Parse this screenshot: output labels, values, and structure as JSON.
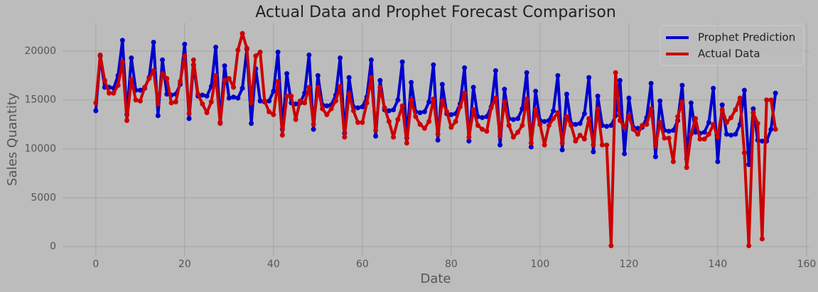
{
  "chart_data": {
    "type": "line",
    "title": "Actual Data and Prophet Forecast Comparison",
    "x_label": "Date",
    "y_label": "Sales Quantity",
    "x": [
      0,
      1,
      2,
      3,
      4,
      5,
      6,
      7,
      8,
      9,
      10,
      11,
      12,
      13,
      14,
      15,
      16,
      17,
      18,
      19,
      20,
      21,
      22,
      23,
      24,
      25,
      26,
      27,
      28,
      29,
      30,
      31,
      32,
      33,
      34,
      35,
      36,
      37,
      38,
      39,
      40,
      41,
      42,
      43,
      44,
      45,
      46,
      47,
      48,
      49,
      50,
      51,
      52,
      53,
      54,
      55,
      56,
      57,
      58,
      59,
      60,
      61,
      62,
      63,
      64,
      65,
      66,
      67,
      68,
      69,
      70,
      71,
      72,
      73,
      74,
      75,
      76,
      77,
      78,
      79,
      80,
      81,
      82,
      83,
      84,
      85,
      86,
      87,
      88,
      89,
      90,
      91,
      92,
      93,
      94,
      95,
      96,
      97,
      98,
      99,
      100,
      101,
      102,
      103,
      104,
      105,
      106,
      107,
      108,
      109,
      110,
      111,
      112,
      113,
      114,
      115,
      116,
      117,
      118,
      119,
      120,
      121,
      122,
      123,
      124,
      125,
      126,
      127,
      128,
      129,
      130,
      131,
      132,
      133,
      134,
      135,
      136,
      137,
      138,
      139,
      140,
      141,
      142,
      143,
      144,
      145,
      146,
      147,
      148,
      149,
      150,
      151,
      152,
      153
    ],
    "series": [
      {
        "name": "Prophet Prediction",
        "color": "#0000cc",
        "values": [
          13900,
          19500,
          16300,
          16300,
          16200,
          17500,
          21100,
          13500,
          19300,
          16000,
          16000,
          16200,
          17300,
          20900,
          13400,
          19100,
          15600,
          15500,
          15600,
          16600,
          20700,
          13100,
          18600,
          15400,
          15500,
          15400,
          16400,
          20400,
          12700,
          18500,
          15200,
          15300,
          15200,
          16200,
          20200,
          12600,
          18200,
          14900,
          14800,
          14900,
          15900,
          19900,
          12000,
          17700,
          14700,
          14600,
          14700,
          15700,
          19600,
          12000,
          17500,
          14500,
          14400,
          14500,
          15500,
          19300,
          11600,
          17300,
          14300,
          14200,
          14300,
          15300,
          19100,
          11300,
          17000,
          14000,
          13900,
          14000,
          15000,
          18900,
          11100,
          16800,
          13800,
          13700,
          13800,
          14800,
          18600,
          10900,
          16600,
          13600,
          13500,
          13600,
          14600,
          18300,
          10800,
          16300,
          13300,
          13200,
          13300,
          14300,
          18000,
          10400,
          16100,
          13100,
          13000,
          13100,
          14100,
          17800,
          10200,
          15900,
          12900,
          12800,
          12900,
          13900,
          17500,
          9900,
          15600,
          12600,
          12500,
          12600,
          13600,
          17300,
          9700,
          15400,
          12400,
          12300,
          12400,
          13400,
          17000,
          9500,
          15200,
          12200,
          12100,
          12200,
          13200,
          16700,
          9200,
          14900,
          11900,
          11800,
          11900,
          12900,
          16500,
          9000,
          14700,
          11700,
          11600,
          11700,
          12700,
          16200,
          8700,
          14500,
          11500,
          11400,
          11500,
          12500,
          16000,
          8400,
          14100,
          10900,
          10800,
          10800,
          12000,
          15700
        ]
      },
      {
        "name": "Actual Data",
        "color": "#cc0000",
        "values": [
          14700,
          19600,
          17000,
          15700,
          15700,
          16500,
          18900,
          12900,
          17100,
          15000,
          14900,
          16300,
          17200,
          18000,
          14600,
          17700,
          17200,
          14700,
          14800,
          16900,
          19500,
          13600,
          19100,
          15600,
          14600,
          13700,
          14800,
          17500,
          12600,
          17000,
          17200,
          16300,
          20100,
          21800,
          20300,
          14700,
          19500,
          19900,
          14900,
          13800,
          13500,
          16900,
          11400,
          15400,
          15400,
          13000,
          14900,
          14700,
          16300,
          12500,
          16300,
          14100,
          13500,
          14100,
          14900,
          16400,
          11200,
          15600,
          13900,
          12700,
          12700,
          14700,
          17300,
          11900,
          16300,
          14200,
          12800,
          11200,
          13000,
          14400,
          10600,
          15000,
          13300,
          12500,
          12100,
          12800,
          15100,
          11500,
          14900,
          13800,
          12200,
          12800,
          14300,
          15700,
          11200,
          14000,
          12400,
          12000,
          11800,
          14200,
          15200,
          11300,
          14800,
          12400,
          11200,
          11700,
          12400,
          15100,
          10600,
          14000,
          12500,
          10400,
          12400,
          13100,
          13700,
          10600,
          13300,
          12400,
          10800,
          11400,
          11000,
          13100,
          10400,
          14100,
          10400,
          10400,
          100,
          17800,
          12900,
          12200,
          13400,
          12000,
          11500,
          12400,
          12500,
          14100,
          10300,
          12700,
          11100,
          11100,
          8700,
          13300,
          14800,
          8100,
          11500,
          13100,
          11000,
          11000,
          11500,
          12500,
          11200,
          14000,
          12700,
          13200,
          14000,
          15200,
          9600,
          100,
          13700,
          12600,
          800,
          15000,
          15000,
          12000
        ]
      }
    ],
    "xlim": [
      -7.65,
      160.65
    ],
    "ylim": [
      -1000,
      22900
    ],
    "xticks": [
      0,
      20,
      40,
      60,
      80,
      100,
      120,
      140,
      160
    ],
    "yticks": [
      0,
      5000,
      10000,
      15000,
      20000
    ],
    "grid": true,
    "legend": "upper right"
  }
}
